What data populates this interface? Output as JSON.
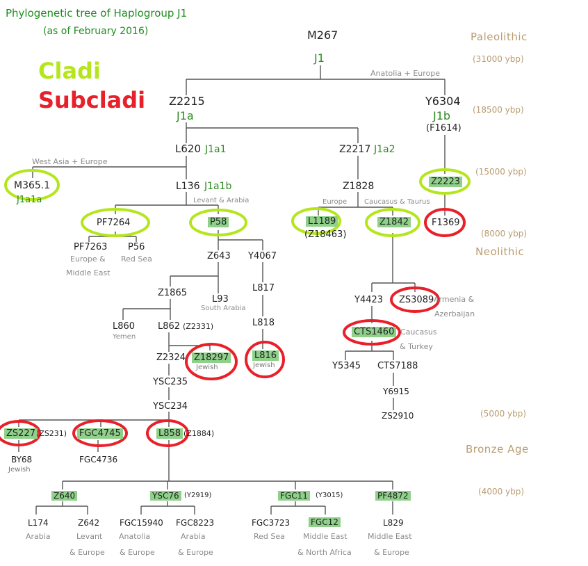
{
  "title": "Phylogenetic tree of Haplogroup J1",
  "subtitle": "(as of February 2016)",
  "legend": {
    "cladi": "Cladi",
    "cladi_color": "#b5e61d",
    "subcladi": "Subcladi",
    "subcladi_color": "#e8202a"
  },
  "colors": {
    "highlight": "#8fd18a",
    "clade_text": "#2e8b22",
    "time_text": "#b99d70",
    "line": "#555555"
  },
  "timeline": {
    "paleolithic": "Paleolithic",
    "t31000": "(31000 ybp)",
    "t18500": "(18500 ybp)",
    "t15000": "(15000 ybp)",
    "t8000": "(8000 ybp)",
    "neolithic": "Neolithic",
    "t5000": "(5000 ybp)",
    "bronze": "Bronze Age",
    "t4000": "(4000 ybp)"
  },
  "nodes": {
    "M267": "M267",
    "J1": "J1",
    "anatolia": "Anatolia + Europe",
    "Z2215": "Z2215",
    "J1a": "J1a",
    "Y6304": "Y6304",
    "J1b": "J1b",
    "F1614": "(F1614)",
    "L620": "L620",
    "J1a1": "J1a1",
    "Z2217": "Z2217",
    "J1a2": "J1a2",
    "westasia": "West Asia + Europe",
    "M365": "M365.1",
    "J1a1a": "J1a1a",
    "L136": "L136",
    "J1a1b": "J1a1b",
    "levant_arabia": "Levant & Arabia",
    "Z1828": "Z1828",
    "europe": "Europe",
    "caucasus_taurus": "Caucasus & Taurus",
    "Z2223": "Z2223",
    "F1369": "F1369",
    "PF7264": "PF7264",
    "P58": "P58",
    "L1189": "L1189",
    "Z18463": "(Z18463)",
    "Z1842": "Z1842",
    "PF7263": "PF7263",
    "P56": "P56",
    "europe_me1": "Europe &",
    "europe_me2": "Middle East",
    "redsea1": "Red Sea",
    "Z643": "Z643",
    "Y4067": "Y4067",
    "Z1865": "Z1865",
    "L93": "L93",
    "southarabia": "South Arabia",
    "L817": "L817",
    "L818": "L818",
    "L816": "L816",
    "jewish_l816": "Jewish",
    "Y4423": "Y4423",
    "ZS3089": "ZS3089",
    "armenia1": "Armenia &",
    "armenia2": "Azerbaijan",
    "CTS1460": "CTS1460",
    "caucasus1": "Caucasus",
    "caucasus2": "& Turkey",
    "Y5345": "Y5345",
    "CTS7188": "CTS7188",
    "Y6915": "Y6915",
    "ZS2910": "ZS2910",
    "L860": "L860",
    "yemen": "Yemen",
    "L862": "L862",
    "Z2331": "(Z2331)",
    "Z2324": "Z2324",
    "Z18297": "Z18297",
    "jewish_z18297": "Jewish",
    "YSC235": "YSC235",
    "YSC234": "YSC234",
    "ZS227": "ZS227",
    "ZS231": "(ZS231)",
    "FGC4745": "FGC4745",
    "L858": "L858",
    "Z1884": "(Z1884)",
    "BY68": "BY68",
    "jewish_by68": "Jewish",
    "FGC4736": "FGC4736",
    "Z640": "Z640",
    "YSC76": "YSC76",
    "Y2919": "(Y2919)",
    "FGC11": "FGC11",
    "Y3015": "(Y3015)",
    "PF4872": "PF4872",
    "L174": "L174",
    "arabia_l174": "Arabia",
    "Z642": "Z642",
    "levant1": "Levant",
    "levant2": "& Europe",
    "FGC15940": "FGC15940",
    "anatolia1": "Anatolia",
    "anatolia2": "& Europe",
    "FGC8223": "FGC8223",
    "arabia2a": "Arabia",
    "arabia2b": "& Europe",
    "FGC3723": "FGC3723",
    "redsea2": "Red Sea",
    "FGC12": "FGC12",
    "me1": "Middle East",
    "me2": "& North Africa",
    "L829": "L829",
    "me3": "Middle East",
    "me4": "& Europe"
  }
}
